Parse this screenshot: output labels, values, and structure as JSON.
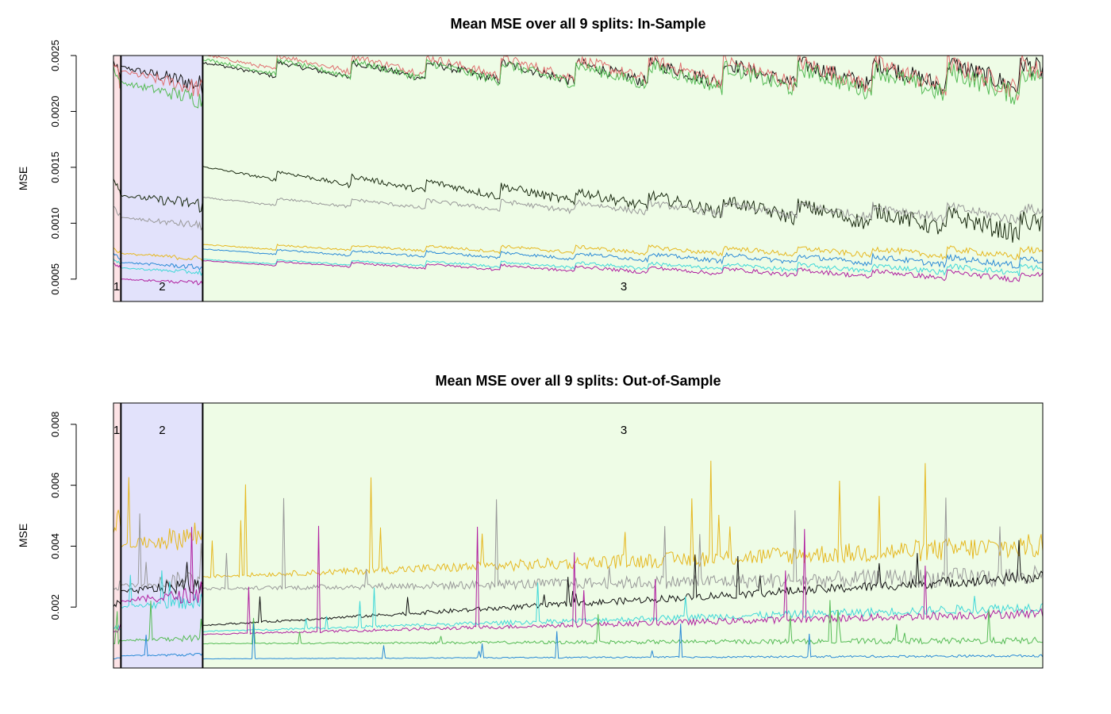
{
  "figure": {
    "background": "#ffffff"
  },
  "chart_data": [
    {
      "type": "line",
      "title": "Mean MSE over all 9 splits: In-Sample",
      "ylabel": "MSE",
      "xlabel": "",
      "yticks": [
        "0.0005",
        "0.0010",
        "0.0015",
        "0.0020",
        "0.0025"
      ],
      "ytick_values": [
        0.0005,
        0.001,
        0.0015,
        0.002,
        0.0025
      ],
      "ylim": [
        0.0003,
        0.0025
      ],
      "grid": false,
      "legend": "none",
      "zones": [
        {
          "label": "1",
          "x_range": [
            0,
            1
          ],
          "color": "#fde3e6"
        },
        {
          "label": "2",
          "x_range": [
            1,
            12
          ],
          "color": "#e2e2fb"
        },
        {
          "label": "3",
          "x_range": [
            12,
            125
          ],
          "color": "#eefce6"
        }
      ],
      "series": [
        {
          "color": "#111111",
          "zone_values": [
            0.00245,
            0.0024,
            0.00238
          ],
          "trend_end": 0.00232
        },
        {
          "color": "#e07070",
          "zone_values": [
            0.00243,
            0.00236,
            0.00245
          ],
          "trend_end": 0.0023
        },
        {
          "color": "#55bb55",
          "zone_values": [
            0.0024,
            0.00226,
            0.00241
          ],
          "trend_end": 0.00224
        },
        {
          "color": "#1a2a10",
          "zone_values": [
            0.0014,
            0.00125,
            0.00147
          ],
          "trend_end": 0.00095
        },
        {
          "color": "#999999",
          "zone_values": [
            0.00115,
            0.00105,
            0.0012
          ],
          "trend_end": 0.00108
        },
        {
          "color": "#e6b820",
          "zone_values": [
            0.00078,
            0.00073,
            0.00079
          ],
          "trend_end": 0.00073
        },
        {
          "color": "#2a8ad6",
          "zone_values": [
            0.00073,
            0.00065,
            0.00075
          ],
          "trend_end": 0.00065
        },
        {
          "color": "#40d8d8",
          "zone_values": [
            0.00068,
            0.0006,
            0.00066
          ],
          "trend_end": 0.00058
        },
        {
          "color": "#b020a0",
          "zone_values": [
            0.00064,
            0.0005,
            0.00065
          ],
          "trend_end": 0.00052
        }
      ]
    },
    {
      "type": "line",
      "title": "Mean MSE over all 9 splits: Out-of-Sample",
      "ylabel": "MSE",
      "xlabel": "",
      "yticks": [
        "0.002",
        "0.004",
        "0.006",
        "0.008"
      ],
      "ytick_values": [
        0.002,
        0.004,
        0.006,
        0.008
      ],
      "ylim": [
        0.0,
        0.0087
      ],
      "grid": false,
      "legend": "none",
      "zones": [
        {
          "label": "1",
          "x_range": [
            0,
            1
          ],
          "color": "#fde3e6"
        },
        {
          "label": "2",
          "x_range": [
            1,
            12
          ],
          "color": "#e2e2fb"
        },
        {
          "label": "3",
          "x_range": [
            12,
            125
          ],
          "color": "#eefce6"
        }
      ],
      "series": [
        {
          "color": "#e6b820",
          "zone_values": [
            0.0045,
            0.004,
            0.003
          ],
          "trend_end": 0.004
        },
        {
          "color": "#999999",
          "zone_values": [
            0.0026,
            0.0027,
            0.0026
          ],
          "trend_end": 0.003
        },
        {
          "color": "#111111",
          "zone_values": [
            0.002,
            0.0025,
            0.0014
          ],
          "trend_end": 0.003
        },
        {
          "color": "#40d8d8",
          "zone_values": [
            0.0013,
            0.002,
            0.0012
          ],
          "trend_end": 0.002
        },
        {
          "color": "#b020a0",
          "zone_values": [
            0.0012,
            0.0022,
            0.0011
          ],
          "trend_end": 0.0018
        },
        {
          "color": "#55bb55",
          "zone_values": [
            0.0008,
            0.0009,
            0.0008
          ],
          "trend_end": 0.0009
        },
        {
          "color": "#2a8ad6",
          "zone_values": [
            0.0003,
            0.0004,
            0.0003
          ],
          "trend_end": 0.0004
        }
      ]
    }
  ]
}
